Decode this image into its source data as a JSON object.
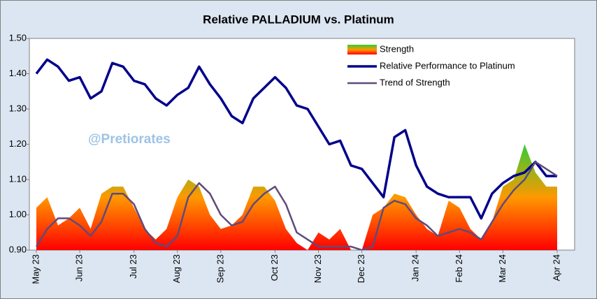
{
  "chart_data": {
    "type": "line",
    "title": "Relative PALLADIUM vs. Platinum",
    "watermark": "@Pretiorates",
    "categories": [
      "May 23",
      null,
      null,
      null,
      "Jun 23",
      null,
      null,
      null,
      null,
      "Jul 23",
      null,
      null,
      null,
      "Aug 23",
      null,
      null,
      null,
      "Sep 23",
      null,
      null,
      null,
      null,
      "Oct 23",
      null,
      null,
      null,
      "Nov 23",
      null,
      null,
      null,
      "Dec 23",
      null,
      null,
      null,
      null,
      "Jan 24",
      null,
      null,
      null,
      "Feb 24",
      null,
      null,
      null,
      "Mar 24",
      null,
      null,
      null,
      null,
      "Apr 24"
    ],
    "series": [
      {
        "name": "Strength",
        "style": "area",
        "colors": [
          "#ff0000",
          "#ff9900",
          "#33cc33"
        ],
        "values": [
          1.02,
          1.05,
          0.97,
          0.99,
          1.02,
          0.96,
          1.06,
          1.08,
          1.08,
          1.02,
          0.96,
          0.93,
          0.96,
          1.05,
          1.1,
          1.08,
          1.0,
          0.96,
          0.97,
          1.0,
          1.08,
          1.08,
          1.04,
          0.96,
          0.92,
          0.9,
          0.95,
          0.93,
          0.96,
          0.9,
          0.9,
          1.0,
          1.02,
          1.06,
          1.05,
          1.0,
          0.96,
          0.94,
          1.04,
          1.02,
          0.96,
          0.93,
          0.98,
          1.08,
          1.1,
          1.2,
          1.12,
          1.08,
          1.08
        ]
      },
      {
        "name": "Relative Performance to Platinum",
        "style": "line",
        "color": "#00008b",
        "values": [
          1.4,
          1.44,
          1.42,
          1.38,
          1.39,
          1.33,
          1.35,
          1.43,
          1.42,
          1.38,
          1.37,
          1.33,
          1.31,
          1.34,
          1.36,
          1.42,
          1.37,
          1.33,
          1.28,
          1.26,
          1.33,
          1.36,
          1.39,
          1.36,
          1.31,
          1.3,
          1.25,
          1.2,
          1.21,
          1.14,
          1.13,
          1.09,
          1.05,
          1.22,
          1.24,
          1.14,
          1.08,
          1.06,
          1.05,
          1.05,
          1.05,
          0.99,
          1.06,
          1.09,
          1.11,
          1.12,
          1.15,
          1.11,
          1.11
        ]
      },
      {
        "name": "Trend of Strength",
        "style": "line",
        "color": "#604a7b",
        "values": [
          0.91,
          0.96,
          0.99,
          0.99,
          0.97,
          0.94,
          0.98,
          1.06,
          1.06,
          1.03,
          0.96,
          0.92,
          0.91,
          0.94,
          1.05,
          1.09,
          1.06,
          1.0,
          0.97,
          0.98,
          1.03,
          1.06,
          1.08,
          1.03,
          0.95,
          0.93,
          0.91,
          0.91,
          0.91,
          0.91,
          0.9,
          0.91,
          1.02,
          1.04,
          1.03,
          0.99,
          0.97,
          0.94,
          0.95,
          0.96,
          0.95,
          0.93,
          0.98,
          1.03,
          1.07,
          1.1,
          1.15,
          1.13,
          1.11
        ]
      }
    ],
    "ylim": [
      0.9,
      1.5
    ],
    "yticks": [
      {
        "value": 0.9,
        "label": "0.90"
      },
      {
        "value": 1.0,
        "label": "1.00"
      },
      {
        "value": 1.1,
        "label": "1.10"
      },
      {
        "value": 1.2,
        "label": "1.20"
      },
      {
        "value": 1.3,
        "label": "1.30"
      },
      {
        "value": 1.4,
        "label": "1.40"
      },
      {
        "value": 1.5,
        "label": "1.50"
      }
    ],
    "grid": false,
    "legend": "upper right"
  }
}
